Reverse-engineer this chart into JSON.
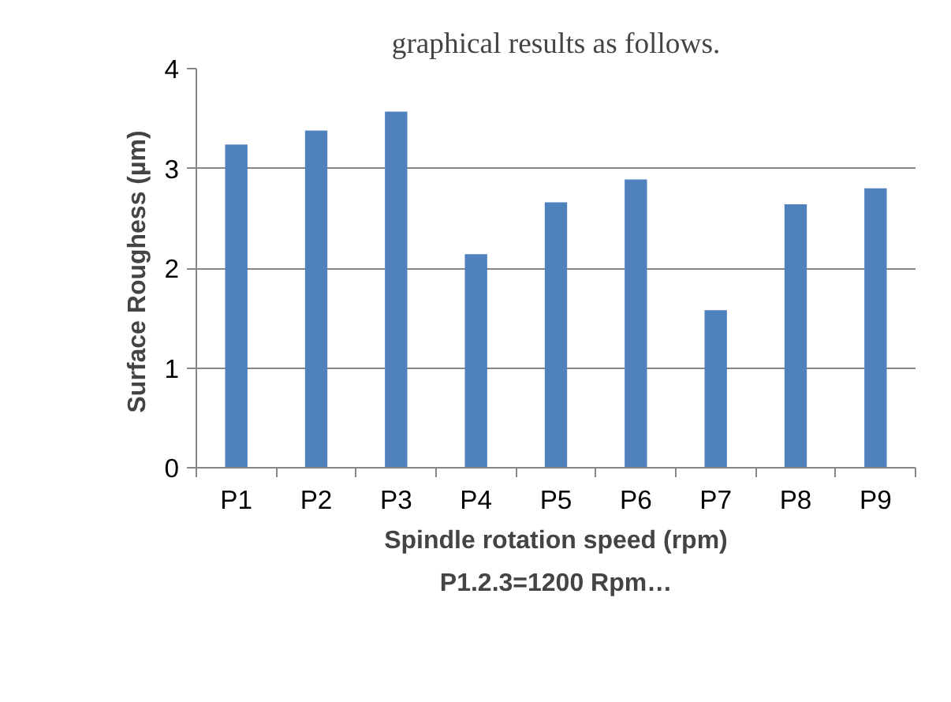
{
  "chart_data": {
    "type": "bar",
    "xlabel": "Spindle rotation speed (rpm)",
    "ylabel": "Surface Roughess  (µm)",
    "categories": [
      "P1",
      "P2",
      "P3",
      "P4",
      "P5",
      "P6",
      "P7",
      "P8",
      "P9"
    ],
    "values": [
      3.24,
      3.38,
      3.57,
      2.14,
      2.66,
      2.89,
      1.58,
      2.64,
      2.8
    ],
    "color": "#4f81bd",
    "ylim": [
      0,
      4
    ],
    "yticks": [
      0,
      1,
      2,
      3,
      4
    ],
    "grid": "y",
    "annotations": [
      "graphical results as follows.",
      "P1.2.3=1200 Rpm…"
    ]
  }
}
